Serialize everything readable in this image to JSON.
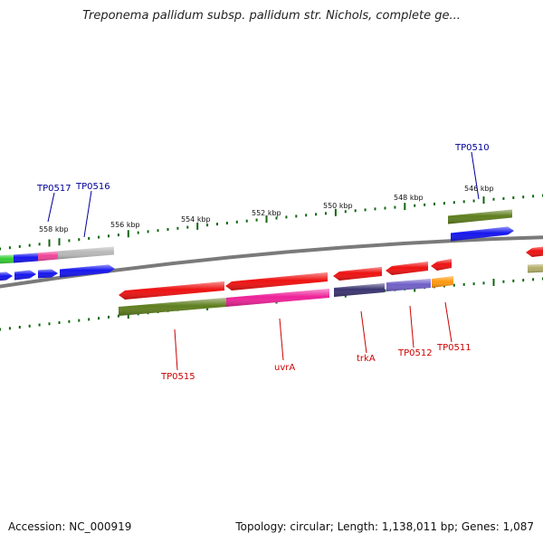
{
  "title": "Treponema pallidum subsp. pallidum str. Nichols, complete ge...",
  "footer": {
    "accession": "Accession: NC_000919",
    "stats": "Topology: circular; Length: 1,138,011 bp; Genes: 1,087"
  },
  "scale": {
    "tick_labels": [
      "558 kbp",
      "556 kbp",
      "554 kbp",
      "552 kbp",
      "550 kbp",
      "548 kbp",
      "546 kbp"
    ]
  },
  "gene_labels": [
    {
      "id": "TP0517",
      "color": "#000099"
    },
    {
      "id": "TP0516",
      "color": "#000099"
    },
    {
      "id": "TP0510",
      "color": "#000099"
    },
    {
      "id": "TP0515",
      "color": "#cc0000"
    },
    {
      "id": "uvrA",
      "color": "#cc0000"
    },
    {
      "id": "trkA",
      "color": "#cc0000"
    },
    {
      "id": "TP0512",
      "color": "#cc0000"
    },
    {
      "id": "TP0511",
      "color": "#cc0000"
    }
  ],
  "colors": {
    "red": "#ee1111",
    "blue": "#1515ee",
    "olive": "#5e7e1e",
    "magenta": "#ee2299",
    "navy": "#3a3470",
    "purple": "#7060c8",
    "orange": "#ff9910",
    "gray": "#b8b8b8",
    "khaki": "#b4ae6a",
    "green": "#33cc33",
    "pink": "#ee4499",
    "backbone": "#7a7a7a",
    "tick": "#116611"
  }
}
